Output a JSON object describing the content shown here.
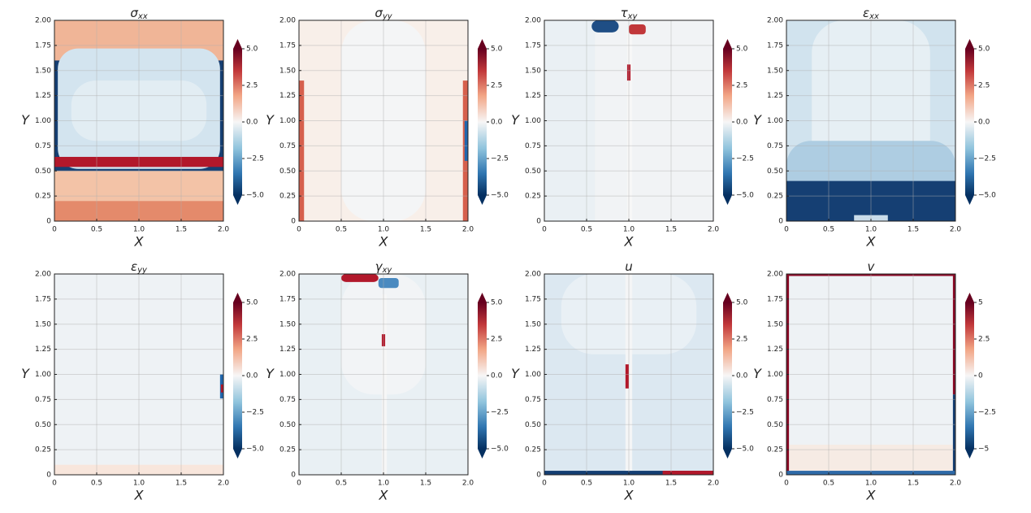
{
  "chart_data": [
    {
      "type": "contour",
      "title": {
        "symbol": "σ",
        "subscript": "xx"
      },
      "xlabel": "X",
      "ylabel": "Y",
      "xlim": [
        0,
        2
      ],
      "ylim": [
        0,
        2
      ],
      "grid": true,
      "xticks": [
        0,
        0.5,
        {
          "value": 1,
          "label": "1.0"
        },
        1.5,
        {
          "value": 2,
          "label": "2.0"
        }
      ],
      "yticks": [
        0,
        0.25,
        {
          "value": 0.5,
          "label": "0.50"
        },
        0.75,
        {
          "value": 1,
          "label": "1.00"
        },
        1.25,
        {
          "value": 1.5,
          "label": "1.50"
        },
        1.75,
        {
          "value": 2,
          "label": "2.00"
        }
      ],
      "colorbar": {
        "lim": [
          -5,
          5
        ],
        "ticks": [
          {
            "value": 5,
            "label": "5.0"
          },
          2.5,
          {
            "value": 0,
            "label": "0.0"
          },
          {
            "value": -2.5,
            "label": "−2.5"
          },
          {
            "value": -5,
            "label": "−5.0"
          }
        ]
      }
    },
    {
      "type": "contour",
      "title": {
        "symbol": "σ",
        "subscript": "yy"
      },
      "xlabel": "X",
      "ylabel": "Y",
      "xlim": [
        0,
        2
      ],
      "ylim": [
        0,
        2
      ],
      "grid": true,
      "xticks": [
        0,
        0.5,
        {
          "value": 1,
          "label": "1.0"
        },
        1.5,
        {
          "value": 2,
          "label": "2.0"
        }
      ],
      "yticks": [
        0,
        0.25,
        {
          "value": 0.5,
          "label": "0.50"
        },
        0.75,
        {
          "value": 1,
          "label": "1.00"
        },
        1.25,
        {
          "value": 1.5,
          "label": "1.50"
        },
        1.75,
        {
          "value": 2,
          "label": "2.00"
        }
      ],
      "colorbar": {
        "lim": [
          -5,
          5
        ],
        "ticks": [
          {
            "value": 5,
            "label": "5.0"
          },
          2.5,
          {
            "value": 0,
            "label": "0.0"
          },
          {
            "value": -2.5,
            "label": "−2.5"
          },
          {
            "value": -5,
            "label": "−5.0"
          }
        ]
      }
    },
    {
      "type": "contour",
      "title": {
        "symbol": "τ",
        "subscript": "xy"
      },
      "xlabel": "X",
      "ylabel": "Y",
      "xlim": [
        0,
        2
      ],
      "ylim": [
        0,
        2
      ],
      "grid": true,
      "xticks": [
        0,
        0.5,
        {
          "value": 1,
          "label": "1.0"
        },
        1.5,
        {
          "value": 2,
          "label": "2.0"
        }
      ],
      "yticks": [
        0,
        0.25,
        {
          "value": 0.5,
          "label": "0.50"
        },
        0.75,
        {
          "value": 1,
          "label": "1.00"
        },
        1.25,
        {
          "value": 1.5,
          "label": "1.50"
        },
        1.75,
        {
          "value": 2,
          "label": "2.00"
        }
      ],
      "colorbar": {
        "lim": [
          -5,
          5
        ],
        "ticks": [
          {
            "value": 5,
            "label": "5.0"
          },
          2.5,
          {
            "value": 0,
            "label": "0.0"
          },
          {
            "value": -2.5,
            "label": "−2.5"
          },
          {
            "value": -5,
            "label": "−5.0"
          }
        ]
      }
    },
    {
      "type": "contour",
      "title": {
        "symbol": "ε",
        "subscript": "xx"
      },
      "xlabel": "X",
      "ylabel": "Y",
      "xlim": [
        0,
        2
      ],
      "ylim": [
        0,
        2
      ],
      "grid": true,
      "xticks": [
        0,
        0.5,
        {
          "value": 1,
          "label": "1.0"
        },
        1.5,
        {
          "value": 2,
          "label": "2.0"
        }
      ],
      "yticks": [
        0,
        0.25,
        {
          "value": 0.5,
          "label": "0.50"
        },
        0.75,
        {
          "value": 1,
          "label": "1.00"
        },
        1.25,
        {
          "value": 1.5,
          "label": "1.50"
        },
        1.75,
        {
          "value": 2,
          "label": "2.00"
        }
      ],
      "colorbar": {
        "lim": [
          -5,
          5
        ],
        "ticks": [
          {
            "value": 5,
            "label": "5.0"
          },
          2.5,
          {
            "value": 0,
            "label": "0.0"
          },
          {
            "value": -2.5,
            "label": "−2.5"
          },
          {
            "value": -5,
            "label": "−5.0"
          }
        ]
      }
    },
    {
      "type": "contour",
      "title": {
        "symbol": "ε",
        "subscript": "yy"
      },
      "xlabel": "X",
      "ylabel": "Y",
      "xlim": [
        0,
        2
      ],
      "ylim": [
        0,
        2
      ],
      "grid": true,
      "xticks": [
        0,
        0.5,
        {
          "value": 1,
          "label": "1.0"
        },
        1.5,
        {
          "value": 2,
          "label": "2.0"
        }
      ],
      "yticks": [
        0,
        0.25,
        {
          "value": 0.5,
          "label": "0.50"
        },
        0.75,
        {
          "value": 1,
          "label": "1.00"
        },
        1.25,
        {
          "value": 1.5,
          "label": "1.50"
        },
        1.75,
        {
          "value": 2,
          "label": "2.00"
        }
      ],
      "colorbar": {
        "lim": [
          -5,
          5
        ],
        "ticks": [
          {
            "value": 5,
            "label": "5.0"
          },
          2.5,
          {
            "value": 0,
            "label": "0.0"
          },
          {
            "value": -2.5,
            "label": "−2.5"
          },
          {
            "value": -5,
            "label": "−5.0"
          }
        ]
      }
    },
    {
      "type": "contour",
      "title": {
        "symbol": "γ",
        "subscript": "xy"
      },
      "xlabel": "X",
      "ylabel": "Y",
      "xlim": [
        0,
        2
      ],
      "ylim": [
        0,
        2
      ],
      "grid": true,
      "xticks": [
        0,
        0.5,
        {
          "value": 1,
          "label": "1.0"
        },
        1.5,
        {
          "value": 2,
          "label": "2.0"
        }
      ],
      "yticks": [
        0,
        0.25,
        {
          "value": 0.5,
          "label": "0.50"
        },
        0.75,
        {
          "value": 1,
          "label": "1.00"
        },
        1.25,
        {
          "value": 1.5,
          "label": "1.50"
        },
        1.75,
        {
          "value": 2,
          "label": "2.00"
        }
      ],
      "colorbar": {
        "lim": [
          -5,
          5
        ],
        "ticks": [
          {
            "value": 5,
            "label": "5.0"
          },
          2.5,
          {
            "value": 0,
            "label": "0.0"
          },
          {
            "value": -2.5,
            "label": "−2.5"
          },
          {
            "value": -5,
            "label": "−5.0"
          }
        ]
      }
    },
    {
      "type": "contour",
      "title": {
        "symbol": "u"
      },
      "xlabel": "X",
      "ylabel": "Y",
      "xlim": [
        0,
        2
      ],
      "ylim": [
        0,
        2
      ],
      "grid": true,
      "xticks": [
        0,
        0.5,
        {
          "value": 1,
          "label": "1.0"
        },
        1.5,
        {
          "value": 2,
          "label": "2.0"
        }
      ],
      "yticks": [
        0,
        0.25,
        {
          "value": 0.5,
          "label": "0.50"
        },
        0.75,
        {
          "value": 1,
          "label": "1.00"
        },
        1.25,
        {
          "value": 1.5,
          "label": "1.50"
        },
        1.75,
        {
          "value": 2,
          "label": "2.00"
        }
      ],
      "colorbar": {
        "lim": [
          -5,
          5
        ],
        "ticks": [
          {
            "value": 5,
            "label": "5.0"
          },
          2.5,
          {
            "value": 0,
            "label": "0.0"
          },
          {
            "value": -2.5,
            "label": "−2.5"
          },
          {
            "value": -5,
            "label": "−5.0"
          }
        ]
      }
    },
    {
      "type": "contour",
      "title": {
        "symbol": "v"
      },
      "xlabel": "X",
      "ylabel": "Y",
      "xlim": [
        0,
        2
      ],
      "ylim": [
        0,
        2
      ],
      "grid": true,
      "xticks": [
        0,
        0.5,
        {
          "value": 1,
          "label": "1.0"
        },
        1.5,
        {
          "value": 2,
          "label": "2.0"
        }
      ],
      "yticks": [
        0,
        0.25,
        {
          "value": 0.5,
          "label": "0.50"
        },
        0.75,
        {
          "value": 1,
          "label": "1.00"
        },
        1.25,
        {
          "value": 1.5,
          "label": "1.50"
        },
        1.75,
        {
          "value": 2,
          "label": "2.00"
        }
      ],
      "colorbar": {
        "lim": [
          -5,
          5
        ],
        "ticks": [
          5,
          2.5,
          0,
          {
            "value": -2.5,
            "label": "−2.5"
          },
          {
            "value": -5,
            "label": "−5"
          }
        ]
      }
    }
  ]
}
